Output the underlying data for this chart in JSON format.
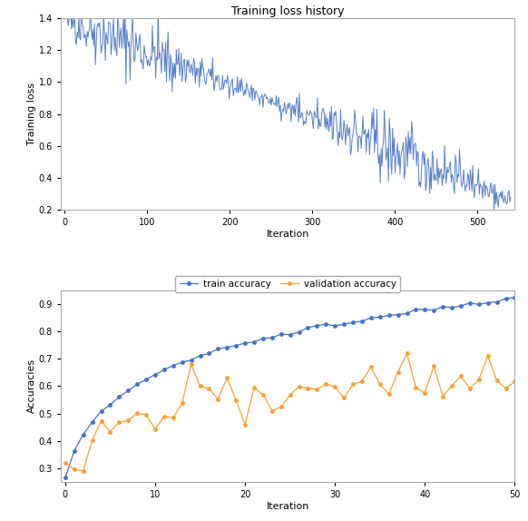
{
  "title_loss": "Training loss history",
  "xlabel_loss": "Iteration",
  "ylabel_loss": "Training loss",
  "xlabel_acc": "Iteration",
  "ylabel_acc": "Accuracies",
  "legend_train": "train accuracy",
  "legend_val": "validation accuracy",
  "loss_color": "#4472c4",
  "train_color": "#4472c4",
  "val_color": "#f4a033",
  "loss_ylim": [
    0.2,
    1.4
  ],
  "acc_ylim": [
    0.25,
    0.95
  ],
  "loss_xlim": [
    -5,
    545
  ],
  "acc_xlim": [
    -0.5,
    50
  ],
  "n_loss": 541,
  "n_acc": 51,
  "marker_size": 3.5,
  "title_fontsize": 9,
  "label_fontsize": 8,
  "tick_fontsize": 7,
  "legend_fontsize": 7.5
}
